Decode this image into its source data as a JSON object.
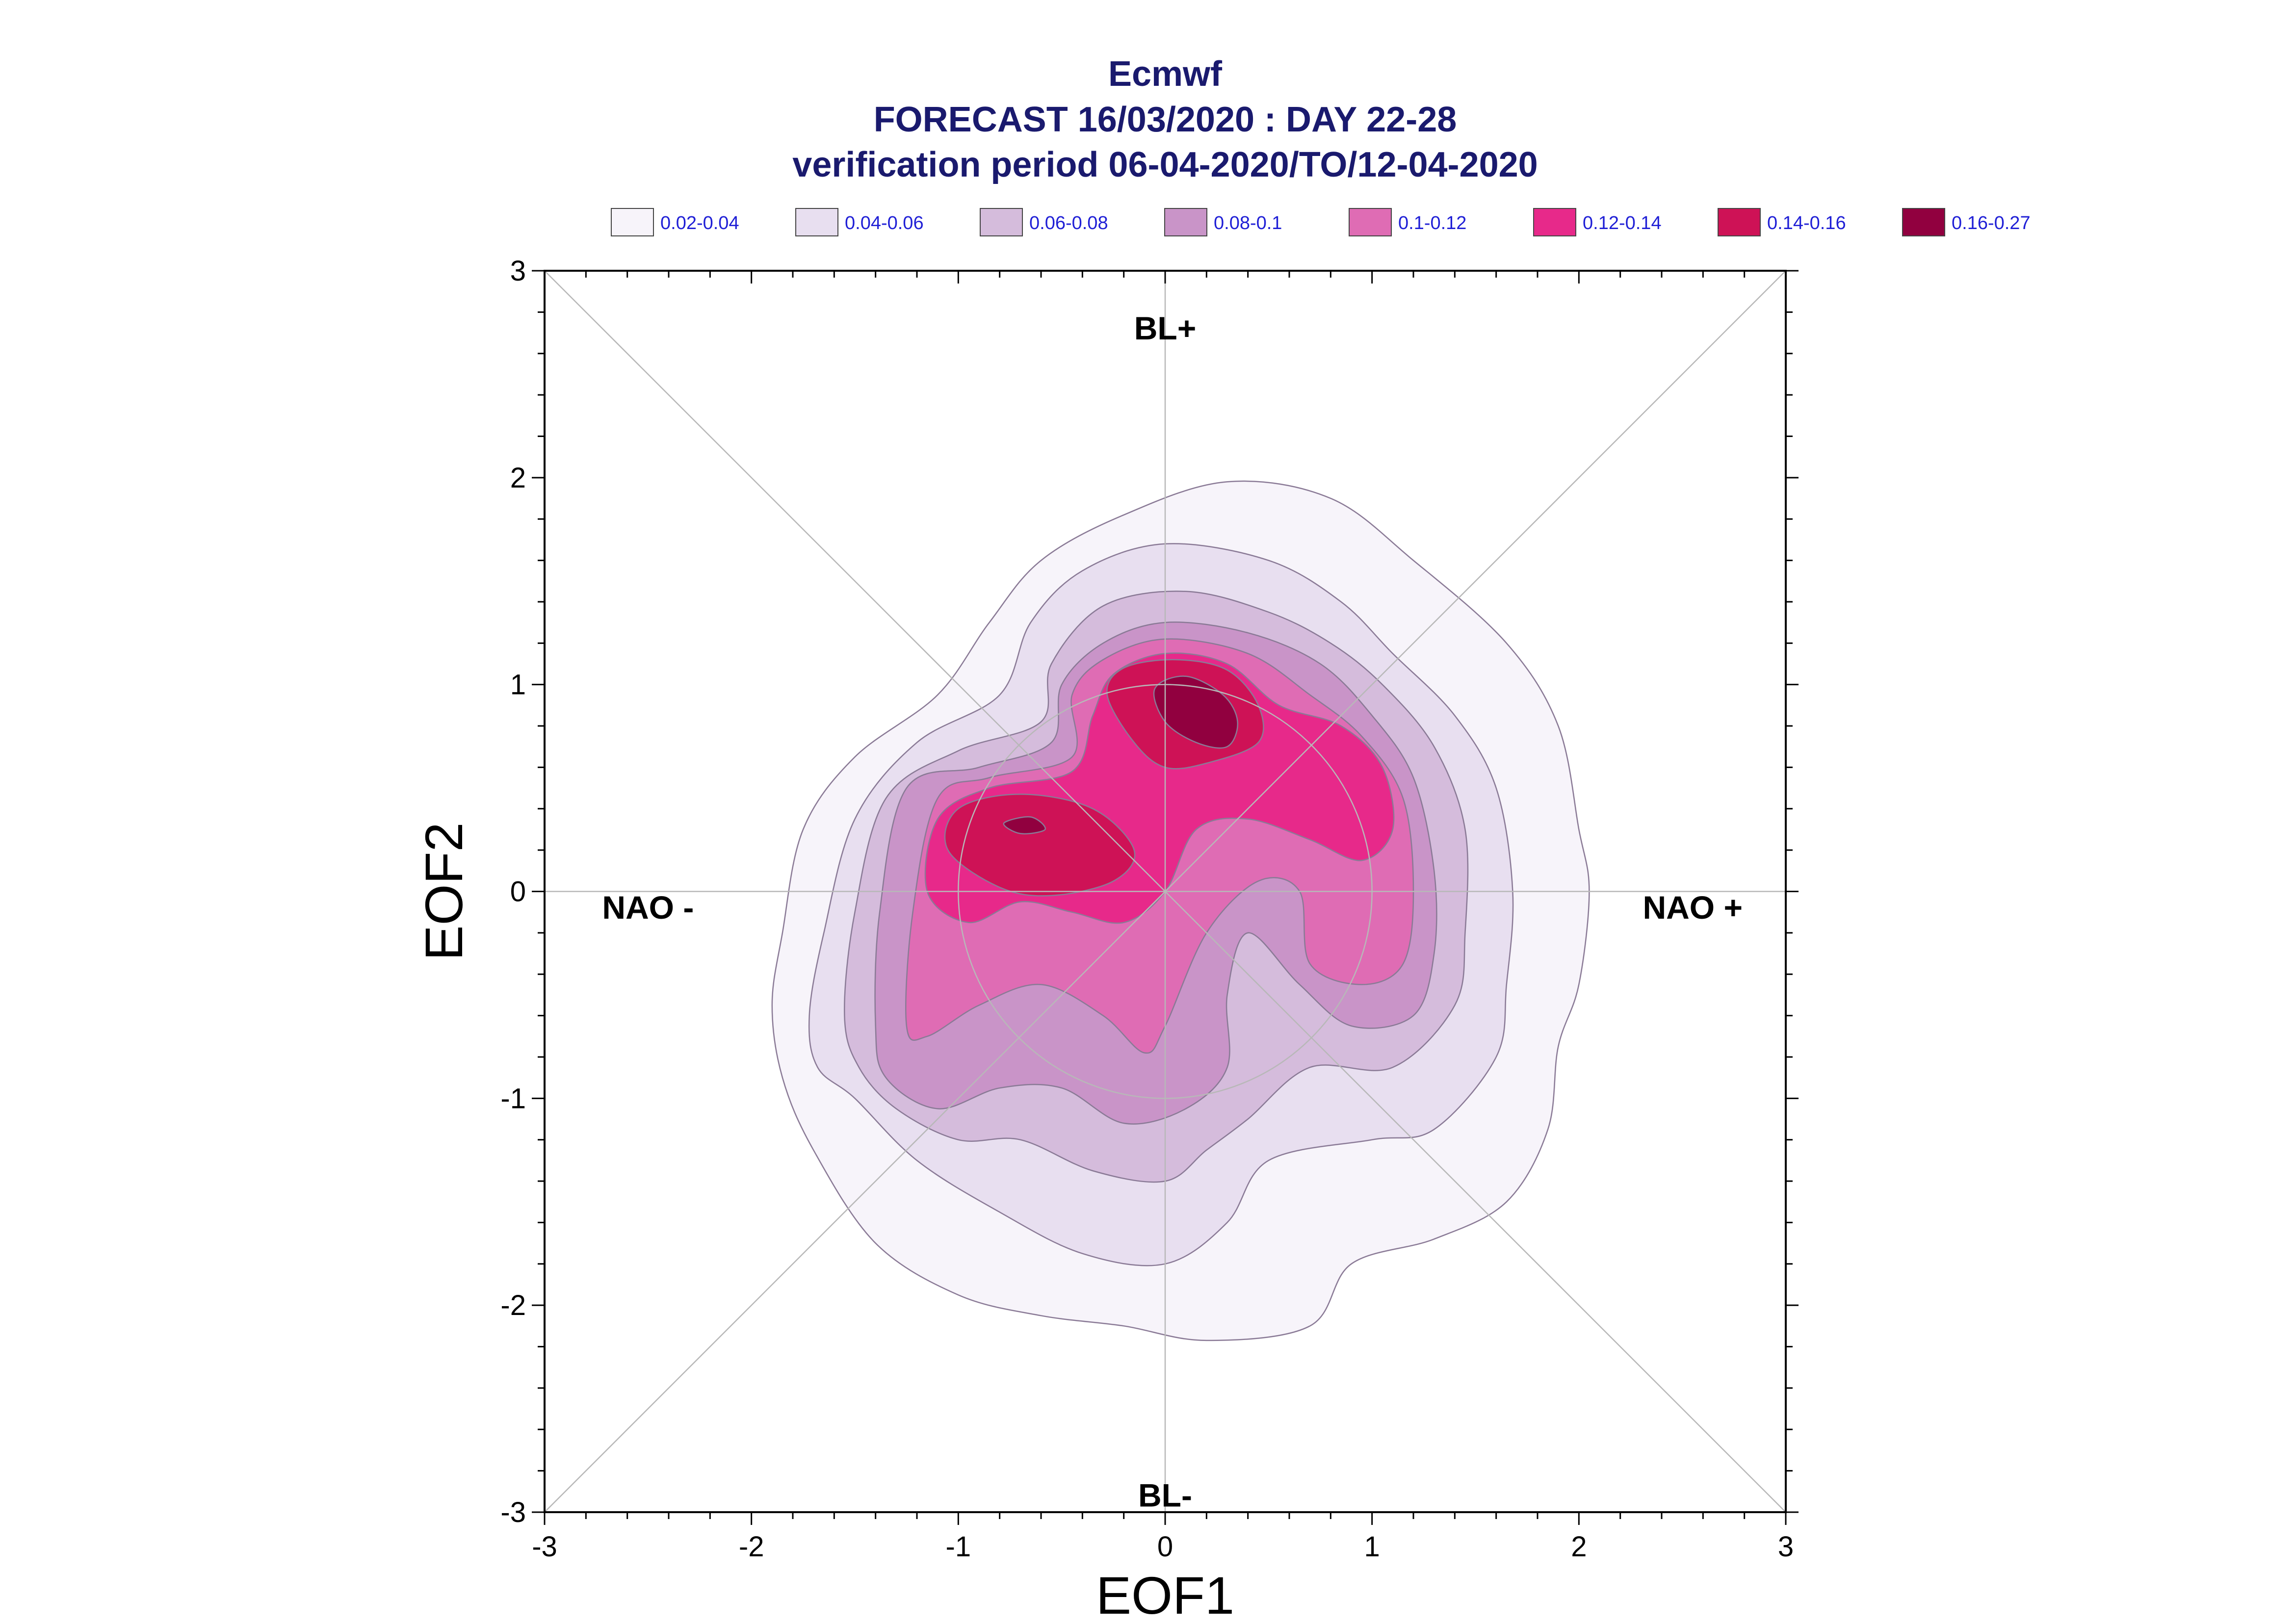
{
  "chart_data": {
    "type": "contour",
    "title": [
      "Ecmwf",
      "FORECAST 16/03/2020 : DAY 22-28",
      "verification period 06-04-2020/TO/12-04-2020"
    ],
    "xlabel": "EOF1",
    "ylabel": "EOF2",
    "xlim": [
      -3,
      3
    ],
    "ylim": [
      -3,
      3
    ],
    "xticks": [
      "-3",
      "-2",
      "-1",
      "0",
      "1",
      "2",
      "3"
    ],
    "yticks": [
      "-3",
      "-2",
      "-1",
      "0",
      "1",
      "2",
      "3"
    ],
    "legend_placement": "top",
    "levels": [
      {
        "label": "0.02-0.04",
        "color": "#f7f4fa"
      },
      {
        "label": "0.04-0.06",
        "color": "#e8dff0"
      },
      {
        "label": "0.06-0.08",
        "color": "#d5bcdc"
      },
      {
        "label": "0.08-0.1",
        "color": "#c994c8"
      },
      {
        "label": "0.1-0.12",
        "color": "#df6cb4"
      },
      {
        "label": "0.12-0.14",
        "color": "#e7298a"
      },
      {
        "label": "0.14-0.16",
        "color": "#ce1256"
      },
      {
        "label": "0.16-0.27",
        "color": "#91003f"
      }
    ],
    "regime_labels": [
      {
        "text": "BL+",
        "x": 0,
        "y": 2.72
      },
      {
        "text": "BL-",
        "x": 0,
        "y": -2.92
      },
      {
        "text": "NAO -",
        "x": -2.5,
        "y": -0.08
      },
      {
        "text": "NAO +",
        "x": 2.55,
        "y": -0.08
      }
    ],
    "reference_circle_radius": 1,
    "contours": [
      {
        "level": 0,
        "points": [
          [
            -1.9,
            -0.55
          ],
          [
            -1.85,
            -0.2
          ],
          [
            -1.75,
            0.3
          ],
          [
            -1.5,
            0.65
          ],
          [
            -1.1,
            0.95
          ],
          [
            -0.85,
            1.3
          ],
          [
            -0.6,
            1.6
          ],
          [
            -0.2,
            1.82
          ],
          [
            0.3,
            1.98
          ],
          [
            0.8,
            1.9
          ],
          [
            1.2,
            1.6
          ],
          [
            1.65,
            1.2
          ],
          [
            1.9,
            0.8
          ],
          [
            2.0,
            0.3
          ],
          [
            2.05,
            0.0
          ],
          [
            2.0,
            -0.45
          ],
          [
            1.9,
            -0.75
          ],
          [
            1.85,
            -1.15
          ],
          [
            1.65,
            -1.5
          ],
          [
            1.3,
            -1.68
          ],
          [
            0.9,
            -1.8
          ],
          [
            0.7,
            -2.1
          ],
          [
            0.2,
            -2.17
          ],
          [
            -0.2,
            -2.1
          ],
          [
            -0.6,
            -2.05
          ],
          [
            -1.0,
            -1.95
          ],
          [
            -1.4,
            -1.7
          ],
          [
            -1.7,
            -1.25
          ],
          [
            -1.85,
            -0.9
          ]
        ]
      },
      {
        "level": 1,
        "points": [
          [
            -1.72,
            -0.6
          ],
          [
            -1.65,
            -0.2
          ],
          [
            -1.5,
            0.35
          ],
          [
            -1.2,
            0.72
          ],
          [
            -0.8,
            0.95
          ],
          [
            -0.65,
            1.3
          ],
          [
            -0.4,
            1.55
          ],
          [
            0.0,
            1.68
          ],
          [
            0.5,
            1.6
          ],
          [
            0.85,
            1.4
          ],
          [
            1.1,
            1.15
          ],
          [
            1.4,
            0.85
          ],
          [
            1.6,
            0.5
          ],
          [
            1.68,
            0.0
          ],
          [
            1.65,
            -0.45
          ],
          [
            1.6,
            -0.8
          ],
          [
            1.3,
            -1.15
          ],
          [
            1.0,
            -1.2
          ],
          [
            0.5,
            -1.3
          ],
          [
            0.3,
            -1.6
          ],
          [
            0.0,
            -1.8
          ],
          [
            -0.4,
            -1.75
          ],
          [
            -0.8,
            -1.55
          ],
          [
            -1.2,
            -1.3
          ],
          [
            -1.5,
            -1.0
          ],
          [
            -1.68,
            -0.85
          ]
        ]
      },
      {
        "level": 2,
        "points": [
          [
            -1.55,
            -0.6
          ],
          [
            -1.5,
            -0.1
          ],
          [
            -1.35,
            0.45
          ],
          [
            -1.0,
            0.68
          ],
          [
            -0.6,
            0.82
          ],
          [
            -0.55,
            1.1
          ],
          [
            -0.3,
            1.38
          ],
          [
            0.1,
            1.45
          ],
          [
            0.5,
            1.35
          ],
          [
            0.8,
            1.2
          ],
          [
            1.05,
            1.0
          ],
          [
            1.3,
            0.7
          ],
          [
            1.45,
            0.3
          ],
          [
            1.45,
            -0.2
          ],
          [
            1.4,
            -0.55
          ],
          [
            1.1,
            -0.85
          ],
          [
            0.7,
            -0.85
          ],
          [
            0.4,
            -1.1
          ],
          [
            0.2,
            -1.25
          ],
          [
            0.0,
            -1.4
          ],
          [
            -0.35,
            -1.35
          ],
          [
            -0.7,
            -1.2
          ],
          [
            -1.0,
            -1.2
          ],
          [
            -1.3,
            -1.05
          ],
          [
            -1.48,
            -0.85
          ]
        ]
      },
      {
        "level": 3,
        "points": [
          [
            -1.4,
            -0.65
          ],
          [
            -1.38,
            -0.1
          ],
          [
            -1.25,
            0.5
          ],
          [
            -0.9,
            0.6
          ],
          [
            -0.55,
            0.72
          ],
          [
            -0.5,
            1.0
          ],
          [
            -0.3,
            1.2
          ],
          [
            0.0,
            1.3
          ],
          [
            0.4,
            1.25
          ],
          [
            0.75,
            1.1
          ],
          [
            1.0,
            0.85
          ],
          [
            1.2,
            0.55
          ],
          [
            1.3,
            0.1
          ],
          [
            1.3,
            -0.3
          ],
          [
            1.2,
            -0.6
          ],
          [
            0.9,
            -0.65
          ],
          [
            0.65,
            -0.45
          ],
          [
            0.4,
            -0.2
          ],
          [
            0.3,
            -0.5
          ],
          [
            0.3,
            -0.85
          ],
          [
            0.1,
            -1.05
          ],
          [
            -0.2,
            -1.12
          ],
          [
            -0.5,
            -0.95
          ],
          [
            -0.8,
            -0.95
          ],
          [
            -1.1,
            -1.05
          ],
          [
            -1.35,
            -0.9
          ]
        ]
      },
      {
        "level": 4,
        "points": [
          [
            -1.25,
            -0.65
          ],
          [
            -1.22,
            -0.1
          ],
          [
            -1.1,
            0.45
          ],
          [
            -0.85,
            0.55
          ],
          [
            -0.45,
            0.65
          ],
          [
            -0.45,
            0.95
          ],
          [
            -0.3,
            1.12
          ],
          [
            0.0,
            1.22
          ],
          [
            0.4,
            1.15
          ],
          [
            0.7,
            0.95
          ],
          [
            0.95,
            0.75
          ],
          [
            1.15,
            0.45
          ],
          [
            1.2,
            0.0
          ],
          [
            1.15,
            -0.35
          ],
          [
            0.95,
            -0.45
          ],
          [
            0.7,
            -0.35
          ],
          [
            0.65,
            0.0
          ],
          [
            0.45,
            0.05
          ],
          [
            0.2,
            -0.2
          ],
          [
            0.0,
            -0.65
          ],
          [
            -0.1,
            -0.78
          ],
          [
            -0.3,
            -0.6
          ],
          [
            -0.6,
            -0.45
          ],
          [
            -0.9,
            -0.55
          ],
          [
            -1.15,
            -0.7
          ]
        ]
      },
      {
        "level": 5,
        "points": [
          [
            -1.15,
            0.0
          ],
          [
            -1.1,
            0.35
          ],
          [
            -0.85,
            0.5
          ],
          [
            -0.45,
            0.58
          ],
          [
            -0.35,
            0.85
          ],
          [
            -0.25,
            1.05
          ],
          [
            0.0,
            1.15
          ],
          [
            0.3,
            1.1
          ],
          [
            0.55,
            0.9
          ],
          [
            0.85,
            0.8
          ],
          [
            1.05,
            0.6
          ],
          [
            1.1,
            0.3
          ],
          [
            0.95,
            0.15
          ],
          [
            0.7,
            0.25
          ],
          [
            0.4,
            0.35
          ],
          [
            0.15,
            0.3
          ],
          [
            0.0,
            0.0
          ],
          [
            -0.2,
            -0.15
          ],
          [
            -0.45,
            -0.1
          ],
          [
            -0.7,
            -0.05
          ],
          [
            -0.95,
            -0.15
          ]
        ]
      },
      {
        "level": 6,
        "points": [
          [
            -1.05,
            0.2
          ],
          [
            -1.0,
            0.4
          ],
          [
            -0.7,
            0.47
          ],
          [
            -0.35,
            0.4
          ],
          [
            -0.15,
            0.2
          ],
          [
            -0.25,
            0.05
          ],
          [
            -0.55,
            -0.02
          ],
          [
            -0.8,
            0.02
          ]
        ]
      },
      {
        "level": 6,
        "points": [
          [
            -0.28,
            0.95
          ],
          [
            -0.2,
            1.08
          ],
          [
            0.05,
            1.12
          ],
          [
            0.3,
            1.07
          ],
          [
            0.45,
            0.9
          ],
          [
            0.45,
            0.72
          ],
          [
            0.2,
            0.62
          ],
          [
            0.0,
            0.6
          ],
          [
            -0.15,
            0.72
          ]
        ]
      },
      {
        "level": 7,
        "points": [
          [
            -0.78,
            0.33
          ],
          [
            -0.65,
            0.36
          ],
          [
            -0.58,
            0.3
          ],
          [
            -0.7,
            0.28
          ]
        ]
      },
      {
        "level": 7,
        "points": [
          [
            -0.05,
            0.98
          ],
          [
            0.1,
            1.04
          ],
          [
            0.28,
            0.95
          ],
          [
            0.35,
            0.82
          ],
          [
            0.3,
            0.7
          ],
          [
            0.15,
            0.72
          ],
          [
            0.0,
            0.82
          ]
        ]
      }
    ]
  }
}
